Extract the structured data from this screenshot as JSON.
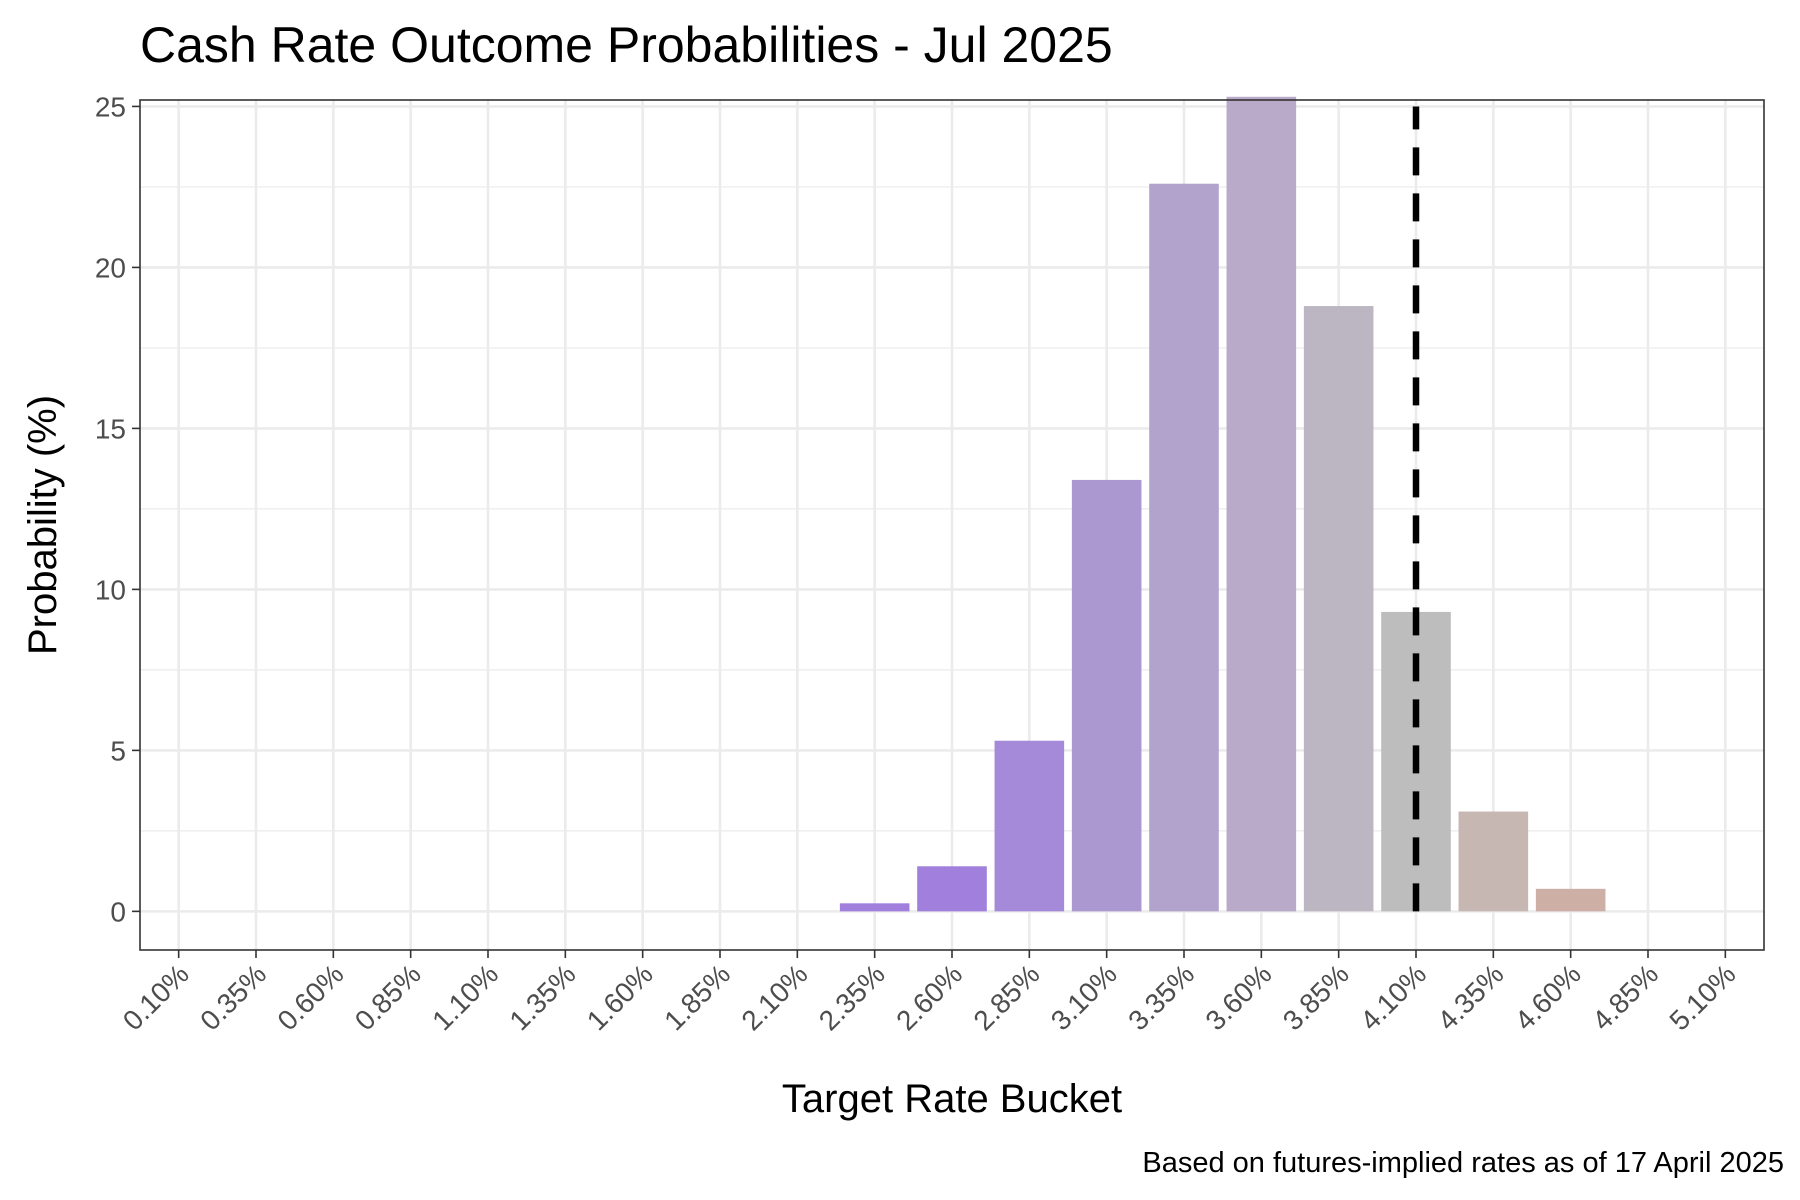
{
  "chart_data": {
    "type": "bar",
    "title": "Cash Rate Outcome Probabilities - Jul 2025",
    "xlabel": "Target Rate Bucket",
    "ylabel": "Probability (%)",
    "caption": "Based on futures-implied rates as of 17 April 2025",
    "categories": [
      "0.10%",
      "0.35%",
      "0.60%",
      "0.85%",
      "1.10%",
      "1.35%",
      "1.60%",
      "1.85%",
      "2.10%",
      "2.35%",
      "2.60%",
      "2.85%",
      "3.10%",
      "3.35%",
      "3.60%",
      "3.85%",
      "4.10%",
      "4.35%",
      "4.60%",
      "4.85%",
      "5.10%"
    ],
    "values": [
      0,
      0,
      0,
      0,
      0,
      0,
      0,
      0,
      0,
      0.25,
      1.4,
      5.3,
      13.4,
      22.6,
      25.3,
      18.8,
      9.3,
      3.1,
      0.7,
      0,
      0
    ],
    "colors": [
      "#a07fdd",
      "#a07fdd",
      "#a07fdd",
      "#a07fdd",
      "#a07fdd",
      "#a07fdd",
      "#a07fdd",
      "#a07fdd",
      "#a07fdd",
      "#a07fdd",
      "#a07fdd",
      "#a48ad8",
      "#ab98d0",
      "#b2a3cd",
      "#b8aac8",
      "#bbb6c2",
      "#bdbdbd",
      "#c6b7b2",
      "#cdafa5",
      "#cdafa5",
      "#cdafa5"
    ],
    "yticks": [
      0,
      5,
      10,
      15,
      20,
      25
    ],
    "ylim": [
      -1.2,
      25.2
    ],
    "reference_line": {
      "category": "4.10%",
      "style": "dashed",
      "color": "#000000"
    },
    "grid": true,
    "legend": "none"
  }
}
